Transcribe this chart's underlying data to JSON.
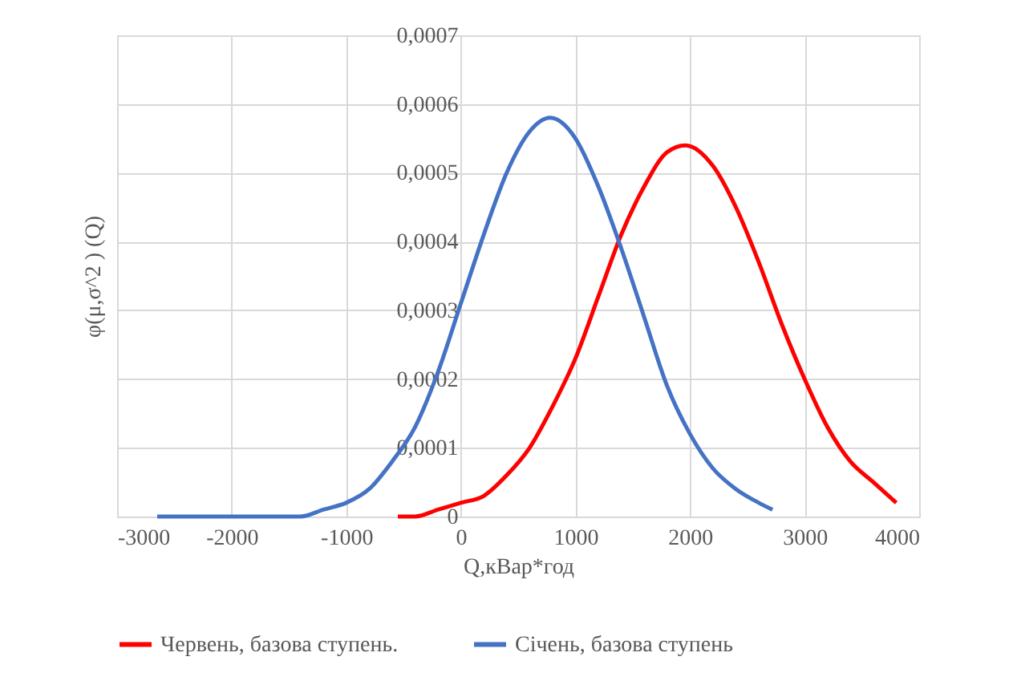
{
  "chart_data": {
    "type": "line",
    "xlabel": "Q,кВар*год",
    "ylabel": "φ(μ,σ^2 ) (Q)",
    "xlim": [
      -3000,
      4000
    ],
    "xticks": [
      -3000,
      -2000,
      -1000,
      0,
      1000,
      2000,
      3000,
      4000
    ],
    "ylim": [
      0,
      0.0007
    ],
    "yticks": [
      {
        "value": 0,
        "label": "0"
      },
      {
        "value": 0.0001,
        "label": "0,0001"
      },
      {
        "value": 0.0002,
        "label": "0,0002"
      },
      {
        "value": 0.0003,
        "label": "0,0003"
      },
      {
        "value": 0.0004,
        "label": "0,0004"
      },
      {
        "value": 0.0005,
        "label": "0,0005"
      },
      {
        "value": 0.0006,
        "label": "0,0006"
      },
      {
        "value": 0.0007,
        "label": "0,0007"
      }
    ],
    "grid": true,
    "legend": "bottom",
    "marker": "none",
    "line_style": "solid",
    "series": [
      {
        "name": "Червень, базова ступень.",
        "color": "#ff0000",
        "x": [
          -550,
          -400,
          -200,
          0,
          200,
          400,
          600,
          800,
          1000,
          1200,
          1400,
          1600,
          1800,
          1960,
          2200,
          2400,
          2600,
          2800,
          3000,
          3200,
          3400,
          3600,
          3800
        ],
        "values": [
          0,
          0,
          1e-05,
          2e-05,
          3e-05,
          6e-05,
          0.0001,
          0.00016,
          0.00023,
          0.00032,
          0.00041,
          0.00048,
          0.00053,
          0.00054,
          0.00051,
          0.00045,
          0.00037,
          0.00028,
          0.0002,
          0.00013,
          8e-05,
          5e-05,
          2e-05
        ]
      },
      {
        "name": "Січень, базова ступень",
        "color": "#4472c4",
        "x": [
          -2650,
          -2000,
          -1600,
          -1400,
          -1200,
          -1000,
          -800,
          -600,
          -400,
          -200,
          0,
          200,
          400,
          600,
          780,
          1000,
          1200,
          1400,
          1600,
          1800,
          2000,
          2200,
          2400,
          2600,
          2720
        ],
        "values": [
          0,
          0,
          0,
          0,
          1e-05,
          2e-05,
          4e-05,
          8e-05,
          0.00013,
          0.00021,
          0.00031,
          0.00041,
          0.0005,
          0.00056,
          0.00058,
          0.00055,
          0.00048,
          0.00039,
          0.00029,
          0.00019,
          0.00012,
          7e-05,
          4e-05,
          2e-05,
          1e-05
        ]
      }
    ]
  }
}
